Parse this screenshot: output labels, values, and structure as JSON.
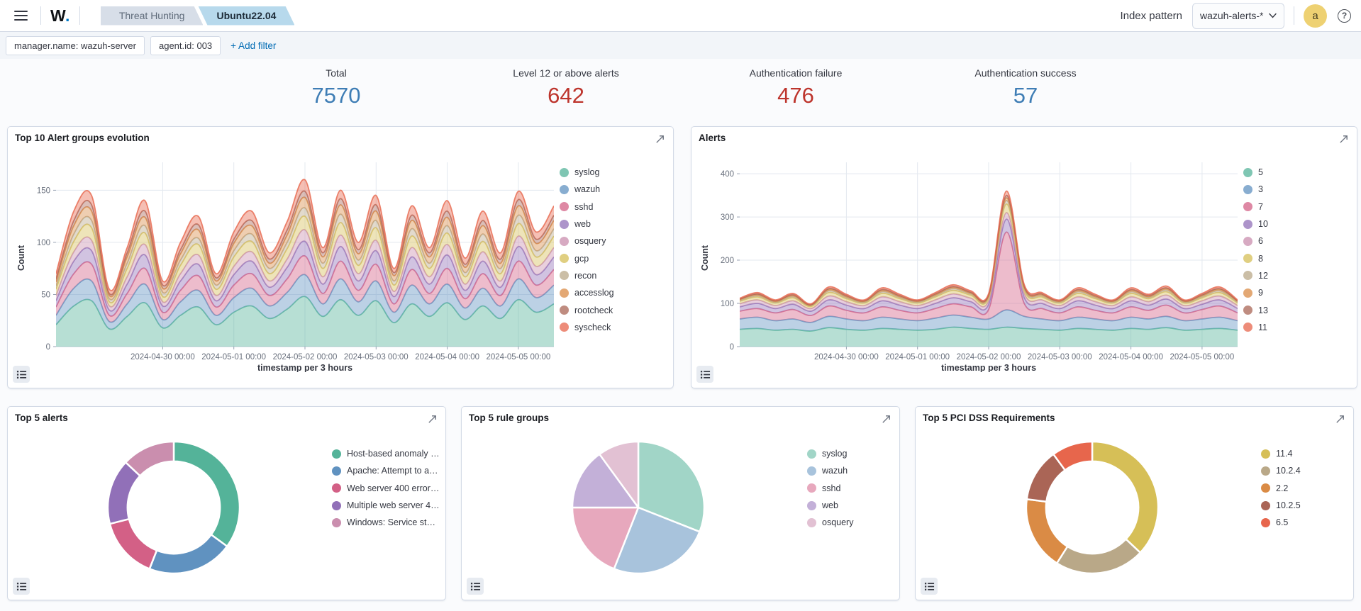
{
  "navbar": {
    "logo": "W",
    "logo_dot": ".",
    "breadcrumbs": [
      {
        "label": "Threat Hunting"
      },
      {
        "label": "Ubuntu22.04"
      }
    ],
    "index_pattern_label": "Index pattern",
    "index_pattern_value": "wazuh-alerts-*",
    "avatar_initial": "a",
    "help_glyph": "?"
  },
  "filters": {
    "pills": [
      "manager.name: wazuh-server",
      "agent.id: 003"
    ],
    "add_filter_label": "+ Add filter"
  },
  "stats": [
    {
      "label": "Total",
      "value": "7570",
      "color": "#3e7db5"
    },
    {
      "label": "Level 12 or above alerts",
      "value": "642",
      "color": "#bd342c"
    },
    {
      "label": "Authentication failure",
      "value": "476",
      "color": "#bd342c"
    },
    {
      "label": "Authentication success",
      "value": "57",
      "color": "#3e7db5"
    }
  ],
  "chart_data": [
    {
      "type": "area",
      "title": "Top 10 Alert groups evolution",
      "stacked": true,
      "xlabel": "timestamp per 3 hours",
      "ylabel": "Count",
      "ylim": [
        0,
        170
      ],
      "yticks": [
        0,
        50,
        100,
        150
      ],
      "grid": true,
      "legend_position": "right",
      "x_range": [
        "2024-04-28 12:00",
        "2024-05-05 12:00"
      ],
      "x_interval_hours": 6,
      "x_tick_labels": [
        "2024-04-30 00:00",
        "2024-05-01 00:00",
        "2024-05-02 00:00",
        "2024-05-03 00:00",
        "2024-05-04 00:00",
        "2024-05-05 00:00"
      ],
      "x_tick_indices": [
        6,
        10,
        14,
        18,
        22,
        26
      ],
      "series": [
        {
          "name": "syslog",
          "color": "#54B399",
          "values": [
            21,
            39,
            44,
            17,
            29,
            42,
            18,
            30,
            38,
            21,
            33,
            39,
            27,
            36,
            48,
            29,
            45,
            30,
            44,
            23,
            41,
            29,
            42,
            26,
            39,
            27,
            45,
            33,
            41
          ]
        },
        {
          "name": "wazuh",
          "color": "#6092C0",
          "values": [
            9,
            17,
            19,
            7,
            12,
            18,
            8,
            13,
            16,
            9,
            14,
            17,
            12,
            16,
            21,
            12,
            20,
            13,
            19,
            10,
            18,
            12,
            18,
            11,
            17,
            12,
            20,
            14,
            18
          ]
        },
        {
          "name": "sshd",
          "color": "#D36086",
          "values": [
            8,
            14,
            16,
            6,
            10,
            15,
            7,
            11,
            14,
            8,
            12,
            14,
            10,
            13,
            18,
            10,
            17,
            11,
            16,
            8,
            15,
            10,
            15,
            9,
            14,
            10,
            17,
            12,
            15
          ]
        },
        {
          "name": "web",
          "color": "#9170B8",
          "values": [
            6,
            12,
            13,
            5,
            9,
            13,
            6,
            9,
            11,
            6,
            10,
            12,
            8,
            11,
            14,
            9,
            14,
            9,
            13,
            7,
            12,
            9,
            13,
            8,
            12,
            8,
            14,
            10,
            12
          ]
        },
        {
          "name": "osquery",
          "color": "#CA8EAE",
          "values": [
            5,
            9,
            10,
            4,
            7,
            10,
            4,
            7,
            9,
            5,
            8,
            9,
            6,
            8,
            11,
            7,
            11,
            7,
            10,
            5,
            9,
            7,
            10,
            6,
            9,
            6,
            10,
            8,
            9
          ]
        },
        {
          "name": "gcp",
          "color": "#D6BF57",
          "values": [
            6,
            10,
            12,
            4,
            8,
            11,
            5,
            8,
            10,
            6,
            9,
            10,
            7,
            10,
            13,
            8,
            12,
            8,
            12,
            6,
            11,
            8,
            11,
            7,
            10,
            7,
            12,
            9,
            11
          ]
        },
        {
          "name": "recon",
          "color": "#B9A888",
          "values": [
            3,
            7,
            7,
            3,
            5,
            7,
            4,
            5,
            6,
            4,
            6,
            7,
            5,
            6,
            8,
            5,
            8,
            5,
            7,
            4,
            7,
            5,
            7,
            4,
            7,
            5,
            8,
            6,
            7
          ]
        },
        {
          "name": "accesslog",
          "color": "#DA8B45",
          "values": [
            4,
            8,
            9,
            3,
            6,
            8,
            4,
            6,
            8,
            4,
            7,
            8,
            5,
            7,
            10,
            6,
            9,
            6,
            9,
            5,
            8,
            6,
            8,
            5,
            8,
            5,
            9,
            7,
            8
          ]
        },
        {
          "name": "rootcheck",
          "color": "#AA6556",
          "values": [
            3,
            5,
            6,
            2,
            4,
            6,
            3,
            4,
            5,
            3,
            4,
            5,
            4,
            5,
            6,
            4,
            6,
            4,
            6,
            3,
            5,
            4,
            6,
            3,
            5,
            4,
            6,
            4,
            5
          ]
        },
        {
          "name": "syscheck",
          "color": "#E7664C",
          "values": [
            5,
            9,
            9,
            4,
            5,
            10,
            4,
            7,
            8,
            4,
            7,
            9,
            6,
            8,
            11,
            5,
            8,
            7,
            9,
            4,
            9,
            5,
            10,
            6,
            9,
            6,
            8,
            7,
            9
          ]
        }
      ]
    },
    {
      "type": "area",
      "title": "Alerts",
      "stacked": true,
      "xlabel": "timestamp per 3 hours",
      "ylabel": "Count",
      "ylim": [
        0,
        410
      ],
      "yticks": [
        0,
        100,
        200,
        300,
        400
      ],
      "grid": true,
      "legend_position": "right",
      "x_range": [
        "2024-04-28 12:00",
        "2024-05-05 12:00"
      ],
      "x_interval_hours": 6,
      "x_tick_labels": [
        "2024-04-30 00:00",
        "2024-05-01 00:00",
        "2024-05-02 00:00",
        "2024-05-03 00:00",
        "2024-05-04 00:00",
        "2024-05-05 00:00"
      ],
      "x_tick_indices": [
        6,
        10,
        14,
        18,
        22,
        26
      ],
      "series": [
        {
          "name": "5",
          "color": "#54B399",
          "values": [
            40,
            42,
            38,
            40,
            36,
            44,
            40,
            38,
            42,
            40,
            38,
            40,
            45,
            42,
            40,
            45,
            42,
            40,
            38,
            42,
            40,
            38,
            42,
            40,
            44,
            38,
            40,
            42,
            38
          ]
        },
        {
          "name": "3",
          "color": "#6092C0",
          "values": [
            24,
            26,
            22,
            24,
            20,
            26,
            24,
            22,
            26,
            24,
            22,
            26,
            28,
            26,
            24,
            40,
            28,
            24,
            22,
            26,
            24,
            22,
            26,
            24,
            26,
            22,
            24,
            26,
            22
          ]
        },
        {
          "name": "7",
          "color": "#D36086",
          "values": [
            18,
            20,
            18,
            22,
            16,
            24,
            20,
            18,
            24,
            20,
            18,
            22,
            26,
            24,
            22,
            180,
            30,
            24,
            18,
            24,
            20,
            18,
            24,
            20,
            26,
            18,
            22,
            26,
            18
          ]
        },
        {
          "name": "10",
          "color": "#9170B8",
          "values": [
            10,
            12,
            10,
            12,
            10,
            14,
            12,
            10,
            14,
            12,
            10,
            12,
            14,
            12,
            12,
            30,
            14,
            12,
            10,
            14,
            12,
            10,
            14,
            12,
            14,
            10,
            12,
            14,
            10
          ]
        },
        {
          "name": "6",
          "color": "#CA8EAE",
          "values": [
            7,
            8,
            7,
            8,
            6,
            9,
            8,
            7,
            9,
            8,
            7,
            8,
            9,
            8,
            8,
            15,
            9,
            8,
            7,
            9,
            8,
            7,
            9,
            8,
            9,
            7,
            8,
            9,
            7
          ]
        },
        {
          "name": "8",
          "color": "#D6BF57",
          "values": [
            6,
            7,
            6,
            7,
            5,
            8,
            7,
            6,
            8,
            7,
            6,
            7,
            8,
            7,
            7,
            20,
            8,
            7,
            6,
            8,
            7,
            6,
            8,
            7,
            8,
            6,
            7,
            8,
            6
          ]
        },
        {
          "name": "12",
          "color": "#B9A888",
          "values": [
            2,
            3,
            2,
            3,
            2,
            4,
            3,
            2,
            4,
            3,
            2,
            3,
            4,
            3,
            3,
            8,
            4,
            3,
            2,
            4,
            3,
            2,
            4,
            3,
            4,
            2,
            3,
            4,
            2
          ]
        },
        {
          "name": "9",
          "color": "#DA8B45",
          "values": [
            2,
            2,
            2,
            2,
            1,
            3,
            2,
            2,
            3,
            2,
            2,
            2,
            3,
            2,
            2,
            6,
            3,
            2,
            2,
            3,
            2,
            2,
            3,
            2,
            3,
            2,
            2,
            3,
            2
          ]
        },
        {
          "name": "13",
          "color": "#AA6556",
          "values": [
            1,
            2,
            1,
            2,
            1,
            2,
            2,
            1,
            2,
            2,
            1,
            2,
            2,
            2,
            2,
            6,
            2,
            2,
            1,
            2,
            2,
            1,
            2,
            2,
            2,
            1,
            2,
            2,
            1
          ]
        },
        {
          "name": "11",
          "color": "#E7664C",
          "values": [
            2,
            3,
            2,
            3,
            2,
            4,
            3,
            2,
            4,
            3,
            2,
            3,
            4,
            3,
            3,
            10,
            4,
            3,
            2,
            4,
            3,
            2,
            4,
            3,
            4,
            2,
            3,
            4,
            2
          ]
        }
      ]
    },
    {
      "type": "pie",
      "title": "Top 5 alerts",
      "donut": true,
      "inner_ratio": 0.7,
      "fill_opacity": 1,
      "legend_dot_opacity": 1,
      "legend_position": "right",
      "slices": [
        {
          "label": "Host-based anomaly …",
          "value": 35,
          "color": "#54B399"
        },
        {
          "label": "Apache: Attempt to a…",
          "value": 21,
          "color": "#6092C0"
        },
        {
          "label": "Web server 400 error…",
          "value": 15,
          "color": "#D36086"
        },
        {
          "label": "Multiple web server 4…",
          "value": 16,
          "color": "#9170B8"
        },
        {
          "label": "Windows: Service st…",
          "value": 13,
          "color": "#CA8EAE"
        }
      ]
    },
    {
      "type": "pie",
      "title": "Top 5 rule groups",
      "donut": false,
      "inner_ratio": 0,
      "fill_opacity": 0.55,
      "legend_dot_opacity": 0.55,
      "legend_position": "right",
      "slices": [
        {
          "label": "syslog",
          "value": 31,
          "color": "#54B399"
        },
        {
          "label": "wazuh",
          "value": 25,
          "color": "#6092C0"
        },
        {
          "label": "sshd",
          "value": 19,
          "color": "#D36086"
        },
        {
          "label": "web",
          "value": 15,
          "color": "#9170B8"
        },
        {
          "label": "osquery",
          "value": 10,
          "color": "#CA8EAE"
        }
      ]
    },
    {
      "type": "pie",
      "title": "Top 5 PCI DSS Requirements",
      "donut": true,
      "inner_ratio": 0.7,
      "fill_opacity": 1,
      "legend_dot_opacity": 1,
      "legend_position": "right",
      "slices": [
        {
          "label": "11.4",
          "value": 37,
          "color": "#D6BF57"
        },
        {
          "label": "10.2.4",
          "value": 22,
          "color": "#B9A888"
        },
        {
          "label": "2.2",
          "value": 18,
          "color": "#DA8B45"
        },
        {
          "label": "10.2.5",
          "value": 13,
          "color": "#AA6556"
        },
        {
          "label": "6.5",
          "value": 10,
          "color": "#E7664C"
        }
      ]
    }
  ]
}
